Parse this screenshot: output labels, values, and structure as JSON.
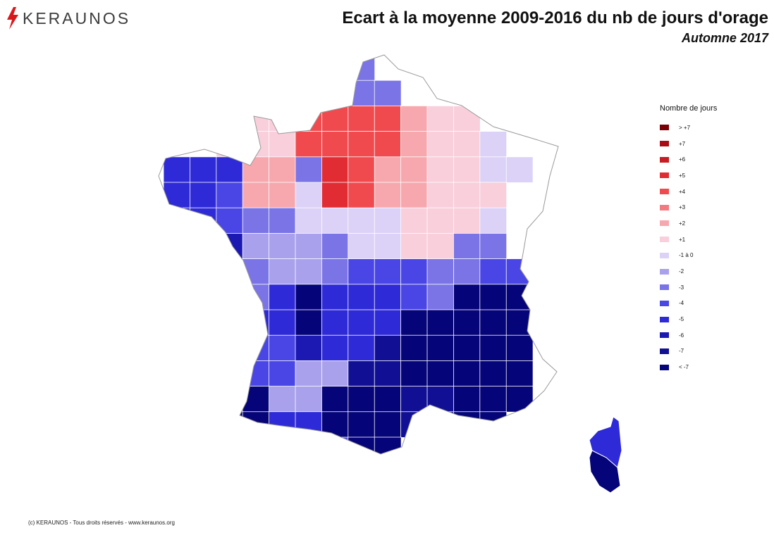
{
  "brand": {
    "name": "KERAUNOS",
    "accent_color": "#d7191c"
  },
  "title": "Ecart à la moyenne 2009-2016 du nb de jours d'orage",
  "subtitle": "Automne 2017",
  "legend": {
    "title": "Nombre de jours",
    "classes": [
      {
        "label": "> +7",
        "color": "#7a0006"
      },
      {
        "label": "+7",
        "color": "#a80c14"
      },
      {
        "label": "+6",
        "color": "#c71c22"
      },
      {
        "label": "+5",
        "color": "#e02c32"
      },
      {
        "label": "+4",
        "color": "#f04a4f"
      },
      {
        "label": "+3",
        "color": "#f57a80"
      },
      {
        "label": "+2",
        "color": "#f7a8ae"
      },
      {
        "label": "+1",
        "color": "#f9cfdc"
      },
      {
        "label": "-1 à 0",
        "color": "#dcd2f7"
      },
      {
        "label": "-2",
        "color": "#a9a1ec"
      },
      {
        "label": "-3",
        "color": "#7a74e6"
      },
      {
        "label": "-4",
        "color": "#4a46e6"
      },
      {
        "label": "-5",
        "color": "#2e2ad8"
      },
      {
        "label": "-6",
        "color": "#1c18b2"
      },
      {
        "label": "-7",
        "color": "#111094"
      },
      {
        "label": "< -7",
        "color": "#050478"
      }
    ]
  },
  "copyright": "(c) KERAUNOS - Tous droits réservés - www.keraunos.org"
}
